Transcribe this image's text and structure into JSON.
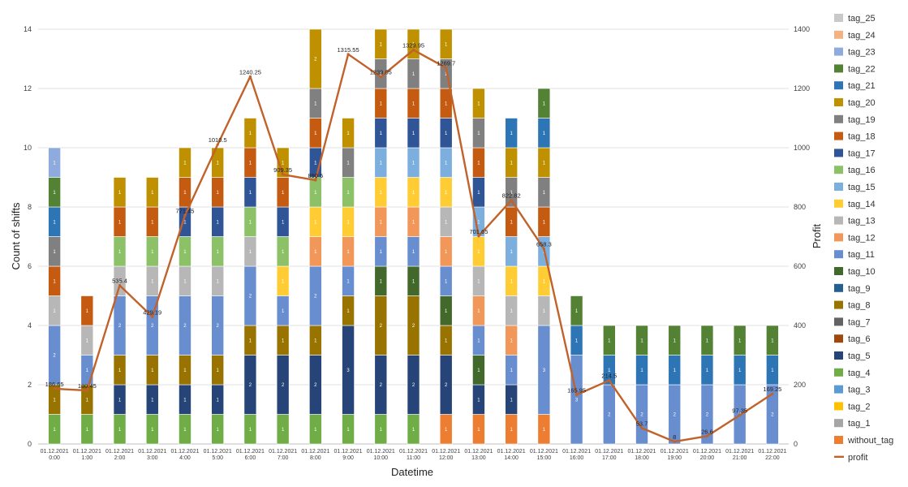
{
  "chart_data": {
    "type": "bar",
    "stacked": true,
    "title": "",
    "xlabel": "Datetime",
    "ylabel": "Count of shifts",
    "y2label": "Profit",
    "ylim": [
      0,
      14
    ],
    "y2lim": [
      0,
      1400
    ],
    "yticks": [
      "0",
      "2",
      "4",
      "6",
      "8",
      "10",
      "12",
      "14"
    ],
    "y2ticks": [
      "0",
      "200",
      "400",
      "600",
      "800",
      "1000",
      "1200",
      "1400"
    ],
    "grid": true,
    "legend_position": "right",
    "categories": [
      [
        "01.12.2021",
        "0:00"
      ],
      [
        "01.12.2021",
        "1:00"
      ],
      [
        "01.12.2021",
        "2:00"
      ],
      [
        "01.12.2021",
        "3:00"
      ],
      [
        "01.12.2021",
        "4:00"
      ],
      [
        "01.12.2021",
        "5:00"
      ],
      [
        "01.12.2021",
        "6:00"
      ],
      [
        "01.12.2021",
        "7:00"
      ],
      [
        "01.12.2021",
        "8:00"
      ],
      [
        "01.12.2021",
        "9:00"
      ],
      [
        "01.12.2021",
        "10:00"
      ],
      [
        "01.12.2021",
        "11:00"
      ],
      [
        "01.12.2021",
        "12:00"
      ],
      [
        "01.12.2021",
        "13:00"
      ],
      [
        "01.12.2021",
        "14:00"
      ],
      [
        "01.12.2021",
        "15:00"
      ],
      [
        "01.12.2021",
        "16:00"
      ],
      [
        "01.12.2021",
        "17:00"
      ],
      [
        "01.12.2021",
        "18:00"
      ],
      [
        "01.12.2021",
        "19:00"
      ],
      [
        "01.12.2021",
        "20:00"
      ],
      [
        "01.12.2021",
        "21:00"
      ],
      [
        "01.12.2021",
        "22:00"
      ]
    ],
    "series": [
      {
        "name": "without_tag",
        "color": "#ED7D31",
        "values": [
          0,
          0,
          0,
          0,
          0,
          0,
          0,
          0,
          0,
          0,
          0,
          0,
          1,
          1,
          1,
          1,
          0,
          0,
          0,
          0,
          0,
          0,
          0
        ]
      },
      {
        "name": "tag_1",
        "color": "#A5A5A5",
        "values": [
          0,
          0,
          0,
          0,
          0,
          0,
          0,
          0,
          0,
          0,
          0,
          0,
          0,
          0,
          0,
          0,
          0,
          0,
          0,
          0,
          0,
          0,
          0
        ]
      },
      {
        "name": "tag_2",
        "color": "#FFC000",
        "values": [
          0,
          0,
          0,
          0,
          0,
          0,
          0,
          0,
          0,
          0,
          0,
          0,
          0,
          0,
          0,
          0,
          0,
          0,
          0,
          0,
          0,
          0,
          0
        ]
      },
      {
        "name": "tag_3",
        "color": "#5B9BD5",
        "values": [
          0,
          0,
          0,
          0,
          0,
          0,
          0,
          0,
          0,
          0,
          0,
          0,
          0,
          0,
          0,
          0,
          0,
          0,
          0,
          0,
          0,
          0,
          0
        ]
      },
      {
        "name": "tag_4",
        "color": "#70AD47",
        "values": [
          1,
          1,
          1,
          1,
          1,
          1,
          1,
          1,
          1,
          1,
          1,
          1,
          0,
          0,
          0,
          0,
          0,
          0,
          0,
          0,
          0,
          0,
          0
        ]
      },
      {
        "name": "tag_5",
        "color": "#264478",
        "values": [
          0,
          0,
          1,
          1,
          1,
          1,
          2,
          2,
          2,
          3,
          2,
          2,
          2,
          1,
          1,
          0,
          0,
          0,
          0,
          0,
          0,
          0,
          0
        ]
      },
      {
        "name": "tag_6",
        "color": "#9E480E",
        "values": [
          0,
          0,
          0,
          0,
          0,
          0,
          0,
          0,
          0,
          0,
          0,
          0,
          0,
          0,
          0,
          0,
          0,
          0,
          0,
          0,
          0,
          0,
          0
        ]
      },
      {
        "name": "tag_7",
        "color": "#636363",
        "values": [
          0,
          0,
          0,
          0,
          0,
          0,
          0,
          0,
          0,
          0,
          0,
          0,
          0,
          0,
          0,
          0,
          0,
          0,
          0,
          0,
          0,
          0,
          0
        ]
      },
      {
        "name": "tag_8",
        "color": "#997300",
        "values": [
          1,
          1,
          1,
          1,
          1,
          1,
          1,
          1,
          1,
          1,
          2,
          2,
          1,
          0,
          0,
          0,
          0,
          0,
          0,
          0,
          0,
          0,
          0
        ]
      },
      {
        "name": "tag_9",
        "color": "#255E91",
        "values": [
          0,
          0,
          0,
          0,
          0,
          0,
          0,
          0,
          0,
          0,
          0,
          0,
          0,
          0,
          0,
          0,
          0,
          0,
          0,
          0,
          0,
          0,
          0
        ]
      },
      {
        "name": "tag_10",
        "color": "#43682B",
        "values": [
          0,
          0,
          0,
          0,
          0,
          0,
          0,
          0,
          0,
          0,
          1,
          1,
          1,
          1,
          0,
          0,
          0,
          0,
          0,
          0,
          0,
          0,
          0
        ]
      },
      {
        "name": "tag_11",
        "color": "#698ED0",
        "values": [
          2,
          1,
          2,
          2,
          2,
          2,
          2,
          1,
          2,
          1,
          1,
          1,
          1,
          1,
          1,
          3,
          3,
          2,
          2,
          2,
          2,
          2,
          2
        ]
      },
      {
        "name": "tag_12",
        "color": "#F1975A",
        "values": [
          0,
          0,
          0,
          0,
          0,
          0,
          0,
          0,
          1,
          1,
          1,
          1,
          1,
          1,
          1,
          0,
          0,
          0,
          0,
          0,
          0,
          0,
          0
        ]
      },
      {
        "name": "tag_13",
        "color": "#B7B7B7",
        "values": [
          1,
          1,
          1,
          1,
          1,
          1,
          1,
          0,
          0,
          0,
          0,
          0,
          1,
          1,
          1,
          1,
          0,
          0,
          0,
          0,
          0,
          0,
          0
        ]
      },
      {
        "name": "tag_14",
        "color": "#FFCD33",
        "values": [
          0,
          0,
          0,
          0,
          0,
          0,
          0,
          1,
          1,
          1,
          1,
          1,
          1,
          1,
          1,
          1,
          0,
          0,
          0,
          0,
          0,
          0,
          0
        ]
      },
      {
        "name": "tag_15",
        "color": "#7CAFDD",
        "values": [
          0,
          0,
          0,
          0,
          0,
          0,
          0,
          0,
          0,
          0,
          1,
          1,
          1,
          1,
          1,
          1,
          0,
          0,
          0,
          0,
          0,
          0,
          0
        ]
      },
      {
        "name": "tag_16",
        "color": "#8CC168",
        "values": [
          0,
          0,
          1,
          1,
          1,
          1,
          1,
          1,
          1,
          1,
          0,
          0,
          0,
          0,
          0,
          0,
          0,
          0,
          0,
          0,
          0,
          0,
          0
        ]
      },
      {
        "name": "tag_17",
        "color": "#2F5597",
        "values": [
          0,
          0,
          0,
          0,
          1,
          1,
          1,
          1,
          1,
          0,
          1,
          1,
          1,
          1,
          0,
          0,
          0,
          0,
          0,
          0,
          0,
          0,
          0
        ]
      },
      {
        "name": "tag_18",
        "color": "#C55A11",
        "values": [
          1,
          1,
          1,
          1,
          1,
          1,
          1,
          1,
          1,
          0,
          1,
          1,
          1,
          1,
          1,
          1,
          0,
          0,
          0,
          0,
          0,
          0,
          0
        ]
      },
      {
        "name": "tag_19",
        "color": "#808080",
        "values": [
          1,
          0,
          0,
          0,
          0,
          0,
          0,
          0,
          1,
          1,
          1,
          1,
          1,
          1,
          1,
          1,
          0,
          0,
          0,
          0,
          0,
          0,
          0
        ]
      },
      {
        "name": "tag_20",
        "color": "#BF9000",
        "values": [
          0,
          0,
          1,
          1,
          1,
          1,
          1,
          1,
          2,
          1,
          1,
          1,
          1,
          1,
          1,
          1,
          0,
          0,
          0,
          0,
          0,
          0,
          0
        ]
      },
      {
        "name": "tag_21",
        "color": "#2E75B6",
        "values": [
          1,
          0,
          0,
          0,
          0,
          0,
          0,
          0,
          0,
          0,
          0,
          0,
          0,
          0,
          1,
          1,
          1,
          1,
          1,
          1,
          1,
          1,
          1
        ]
      },
      {
        "name": "tag_22",
        "color": "#548235",
        "values": [
          1,
          0,
          0,
          0,
          0,
          0,
          0,
          0,
          0,
          0,
          0,
          0,
          0,
          0,
          0,
          1,
          1,
          1,
          1,
          1,
          1,
          1,
          1
        ]
      },
      {
        "name": "tag_23",
        "color": "#8FAADC",
        "values": [
          1,
          0,
          0,
          0,
          0,
          0,
          0,
          0,
          0,
          0,
          0,
          0,
          0,
          0,
          0,
          0,
          0,
          0,
          0,
          0,
          0,
          0,
          0
        ]
      },
      {
        "name": "tag_24",
        "color": "#F4B183",
        "values": [
          0,
          0,
          0,
          0,
          0,
          0,
          0,
          0,
          0,
          0,
          0,
          0,
          0,
          0,
          0,
          0,
          0,
          0,
          0,
          0,
          0,
          0,
          0
        ]
      },
      {
        "name": "tag_25",
        "color": "#C9C9C9",
        "values": [
          0,
          0,
          0,
          0,
          0,
          0,
          0,
          0,
          0,
          0,
          0,
          0,
          0,
          0,
          0,
          0,
          0,
          0,
          0,
          0,
          0,
          0,
          0
        ]
      }
    ],
    "line": {
      "name": "profit",
      "color": "#C0622A",
      "axis": "secondary",
      "values": [
        186.65,
        180.45,
        535.4,
        429.19,
        771.45,
        1010.5,
        1240.25,
        909.35,
        890.5,
        1315.55,
        1239.05,
        1329.95,
        1269.7,
        701.65,
        822.82,
        658.3,
        165.95,
        214.5,
        53.7,
        8,
        26.6,
        97.35,
        169.25
      ],
      "labels": [
        "186.65",
        "180.45",
        "535.4",
        "429.19",
        "771.45",
        "1010.5",
        "1240.25",
        "909.35",
        "890.5",
        "1315.55",
        "1239.05",
        "1329.95",
        "1269.7",
        "701.65",
        "822.82",
        "658.3",
        "165.95",
        "214.5",
        "53.7",
        "8",
        "26.6",
        "97.35",
        "169.25"
      ]
    },
    "legend": [
      "tag_25",
      "tag_24",
      "tag_23",
      "tag_22",
      "tag_21",
      "tag_20",
      "tag_19",
      "tag_18",
      "tag_17",
      "tag_16",
      "tag_15",
      "tag_14",
      "tag_13",
      "tag_12",
      "tag_11",
      "tag_10",
      "tag_9",
      "tag_8",
      "tag_7",
      "tag_6",
      "tag_5",
      "tag_4",
      "tag_3",
      "tag_2",
      "tag_1",
      "without_tag",
      "profit"
    ]
  }
}
